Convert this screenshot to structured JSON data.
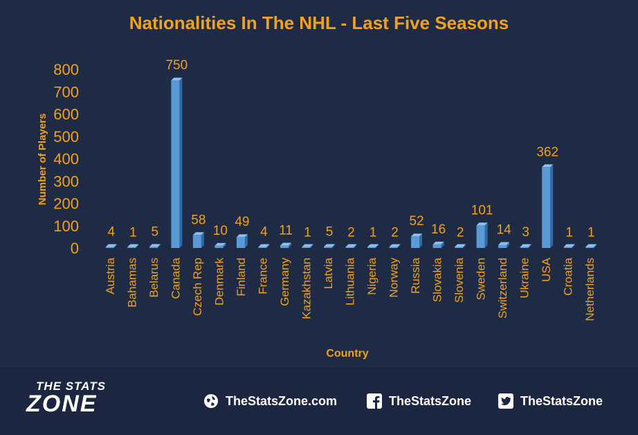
{
  "title": "Nationalities  In The NHL - Last Five Seasons",
  "colors": {
    "background": "#1f2b45",
    "accent": "#f2a21a",
    "bar": "#5b9bd5",
    "footer": "#1c2640"
  },
  "chart_data": {
    "type": "bar",
    "title": "Nationalities  In The NHL - Last Five Seasons",
    "xlabel": "Country",
    "ylabel": "Number of Players",
    "ylim": [
      0,
      800
    ],
    "yticks": [
      0,
      100,
      200,
      300,
      400,
      500,
      600,
      700,
      800
    ],
    "grid": false,
    "bar_style": "3d-column",
    "categories": [
      "Austria",
      "Bahamas",
      "Belarus",
      "Canada",
      "Czech Rep",
      "Denmark",
      "Finland",
      "France",
      "Germany",
      "Kazakhstan",
      "Latvia",
      "Lithuania",
      "Nigeria",
      "Norway",
      "Russia",
      "Slovakia",
      "Slovenia",
      "Sweden",
      "Switzerland",
      "Ukraine",
      "USA",
      "Croatia",
      "Netherlands"
    ],
    "values": [
      4,
      1,
      5,
      750,
      58,
      10,
      49,
      4,
      11,
      1,
      5,
      2,
      1,
      2,
      52,
      16,
      2,
      101,
      14,
      3,
      362,
      1,
      1
    ]
  },
  "footer": {
    "logo_line1": "THE STATS",
    "logo_line2": "ZONE",
    "website": "TheStatsZone.com",
    "facebook": "TheStatsZone",
    "twitter": "TheStatsZone",
    "icons": [
      "globe-icon",
      "facebook-icon",
      "twitter-icon"
    ]
  }
}
